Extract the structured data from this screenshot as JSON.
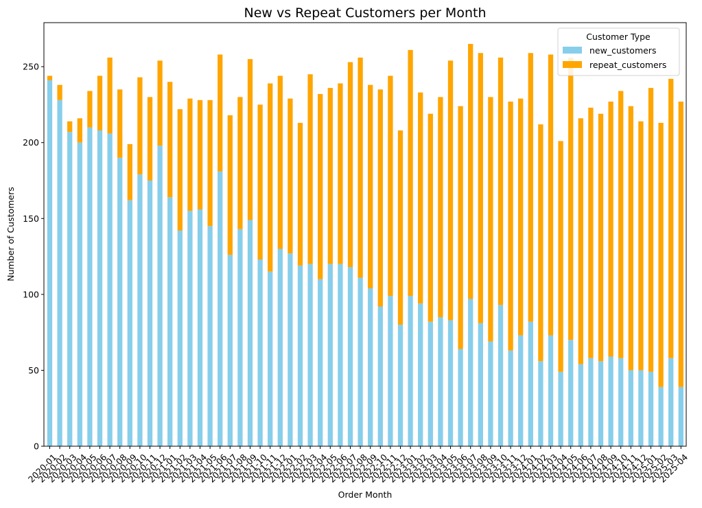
{
  "chart_data": {
    "type": "bar",
    "stacked": true,
    "title": "New vs Repeat Customers per Month",
    "xlabel": "Order Month",
    "ylabel": "Number of Customers",
    "ylim": [
      0,
      279
    ],
    "yticks": [
      0,
      50,
      100,
      150,
      200,
      250
    ],
    "grid": false,
    "legend": {
      "title": "Customer Type",
      "placement": "top-right"
    },
    "categories": [
      "2020-01",
      "2020-02",
      "2020-03",
      "2020-04",
      "2020-05",
      "2020-06",
      "2020-07",
      "2020-08",
      "2020-09",
      "2020-10",
      "2020-11",
      "2020-12",
      "2021-01",
      "2021-02",
      "2021-03",
      "2021-04",
      "2021-05",
      "2021-06",
      "2021-07",
      "2021-08",
      "2021-09",
      "2021-10",
      "2021-11",
      "2021-12",
      "2022-01",
      "2022-02",
      "2022-03",
      "2022-04",
      "2022-05",
      "2022-06",
      "2022-07",
      "2022-08",
      "2022-09",
      "2022-10",
      "2022-11",
      "2022-12",
      "2023-01",
      "2023-02",
      "2023-03",
      "2023-04",
      "2023-05",
      "2023-06",
      "2023-07",
      "2023-08",
      "2023-09",
      "2023-10",
      "2023-11",
      "2023-12",
      "2024-01",
      "2024-02",
      "2024-03",
      "2024-04",
      "2024-05",
      "2024-06",
      "2024-07",
      "2024-08",
      "2024-09",
      "2024-10",
      "2024-11",
      "2024-12",
      "2025-01",
      "2025-02",
      "2025-03",
      "2025-04"
    ],
    "series": [
      {
        "name": "new_customers",
        "color": "#87ceeb",
        "values": [
          241,
          228,
          207,
          200,
          210,
          208,
          206,
          190,
          162,
          179,
          175,
          198,
          164,
          142,
          155,
          156,
          145,
          181,
          126,
          143,
          149,
          123,
          115,
          130,
          127,
          119,
          120,
          110,
          120,
          120,
          118,
          111,
          104,
          92,
          99,
          80,
          99,
          94,
          82,
          85,
          83,
          64,
          97,
          81,
          69,
          93,
          63,
          73,
          82,
          56,
          73,
          49,
          70,
          54,
          58,
          56,
          59,
          58,
          50,
          50,
          49,
          39,
          58,
          39
        ]
      },
      {
        "name": "repeat_customers",
        "color": "#ffa500",
        "values": [
          3,
          10,
          7,
          16,
          24,
          36,
          50,
          45,
          37,
          64,
          55,
          56,
          76,
          80,
          74,
          72,
          83,
          77,
          92,
          87,
          106,
          102,
          124,
          114,
          102,
          94,
          125,
          122,
          116,
          119,
          135,
          145,
          134,
          143,
          145,
          128,
          162,
          139,
          137,
          145,
          171,
          160,
          168,
          178,
          161,
          163,
          164,
          156,
          177,
          156,
          185,
          152,
          186,
          162,
          165,
          163,
          168,
          176,
          174,
          164,
          187,
          174,
          184,
          188
        ]
      }
    ]
  }
}
